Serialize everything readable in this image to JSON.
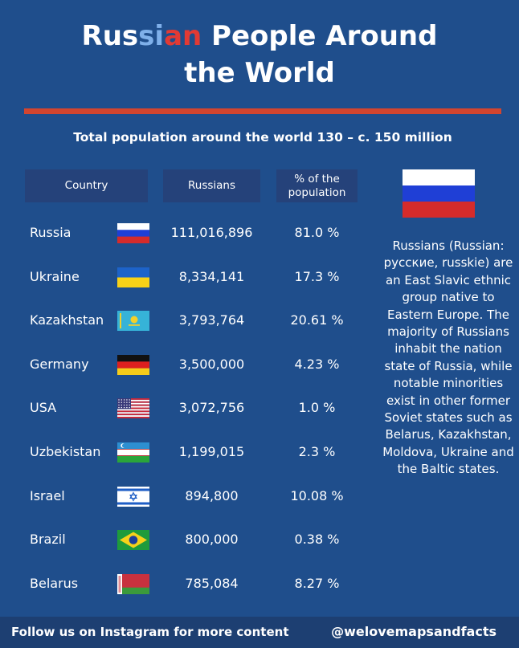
{
  "title": {
    "part1": "Rus",
    "part2": "si",
    "part3": "an",
    "part4": " People Around",
    "line2": "the World"
  },
  "subtitle": "Total population around the world 130 – c. 150 million",
  "table": {
    "headers": [
      "Country",
      "Russians",
      "% of the population"
    ],
    "rows": [
      {
        "country": "Russia",
        "russians": "111,016,896",
        "pct": "81.0 %",
        "flag": "russia-flag-icon"
      },
      {
        "country": "Ukraine",
        "russians": "8,334,141",
        "pct": "17.3 %",
        "flag": "ukraine-flag-icon"
      },
      {
        "country": "Kazakhstan",
        "russians": "3,793,764",
        "pct": "20.61 %",
        "flag": "kazakhstan-flag-icon"
      },
      {
        "country": "Germany",
        "russians": "3,500,000",
        "pct": "4.23 %",
        "flag": "germany-flag-icon"
      },
      {
        "country": "USA",
        "russians": "3,072,756",
        "pct": "1.0 %",
        "flag": "usa-flag-icon"
      },
      {
        "country": "Uzbekistan",
        "russians": "1,199,015",
        "pct": "2.3 %",
        "flag": "uzbekistan-flag-icon"
      },
      {
        "country": "Israel",
        "russians": "894,800",
        "pct": "10.08 %",
        "flag": "israel-flag-icon"
      },
      {
        "country": "Brazil",
        "russians": "800,000",
        "pct": "0.38 %",
        "flag": "brazil-flag-icon"
      },
      {
        "country": "Belarus",
        "russians": "785,084",
        "pct": "8.27 %",
        "flag": "belarus-flag-icon"
      }
    ]
  },
  "description": "Russians (Russian: русские, russkie) are an East Slavic ethnic group native to Eastern Europe. The majority of Russians inhabit the nation state of Russia, while notable minorities exist in other former Soviet states such as Belarus, Kazakhstan, Moldova, Ukraine and the Baltic states.",
  "footer": {
    "left": "Follow us on Instagram for more content",
    "right": "@welovemapsandfacts"
  },
  "colors": {
    "background": "#1f4e8c",
    "accent_red": "#d2452f",
    "header_cell": "#25427a",
    "footer": "#1d3f72"
  }
}
